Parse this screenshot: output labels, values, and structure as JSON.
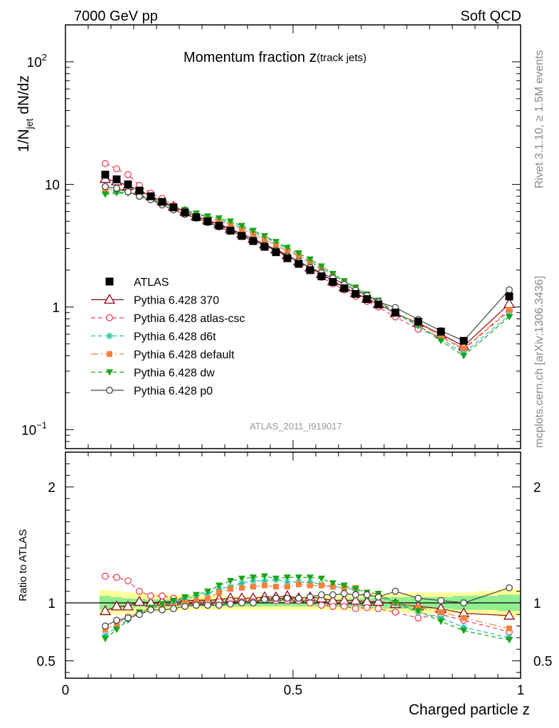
{
  "header": {
    "left": "7000 GeV pp",
    "right": "Soft QCD"
  },
  "side_text": {
    "rivet": "Rivet 3.1.10, ≥ 1.5M events",
    "mcplots": "mcplots.cern.ch [arXiv:1306.3436]"
  },
  "analysis_id": "ATLAS_2011_I919017",
  "colors": {
    "ATLAS": "#000000",
    "Pythia 6.428 370": "#8b0a1e",
    "Pythia 6.428 atlas-csc": "#e8435f",
    "Pythia 6.428 d6t": "#17c4a4",
    "Pythia 6.428 default": "#f5823a",
    "Pythia 6.428 dw": "#1aa51a",
    "Pythia 6.428 p0": "#444444",
    "band_inner": "#90ee90",
    "band_outer": "#ffff99"
  },
  "chart_data": [
    {
      "type": "line",
      "title_main": "Momentum fraction ",
      "title_z": "z",
      "title_sub": "(track jets)",
      "ylabel": "1/N_jet dN/dz",
      "y_scale": "log",
      "ylim": [
        0.07,
        200
      ],
      "xlim": [
        0,
        1
      ],
      "y_ticks": [
        {
          "value": 100,
          "label": "10",
          "exp": "2"
        },
        {
          "value": 10,
          "label": "10",
          "exp": ""
        },
        {
          "value": 1,
          "label": "1",
          "exp": ""
        },
        {
          "value": 0.1,
          "label": "10",
          "exp": "−1"
        }
      ],
      "legend_position": "middle-left",
      "legend": [
        "ATLAS",
        "Pythia 6.428 370",
        "Pythia 6.428 atlas-csc",
        "Pythia 6.428 d6t",
        "Pythia 6.428 default",
        "Pythia 6.428 dw",
        "Pythia 6.428 p0"
      ],
      "x": [
        0.0875,
        0.1125,
        0.1375,
        0.1625,
        0.1875,
        0.2125,
        0.2375,
        0.2625,
        0.2875,
        0.3125,
        0.3375,
        0.3625,
        0.3875,
        0.4125,
        0.4375,
        0.4625,
        0.4875,
        0.5125,
        0.5375,
        0.5625,
        0.5875,
        0.6125,
        0.6375,
        0.6625,
        0.6875,
        0.725,
        0.775,
        0.825,
        0.875,
        0.975
      ],
      "series": [
        {
          "name": "ATLAS",
          "marker": "square",
          "values": [
            12.0,
            11.0,
            10.0,
            8.9,
            8.0,
            7.2,
            6.5,
            5.9,
            5.4,
            5.0,
            4.6,
            4.2,
            3.8,
            3.45,
            3.1,
            2.8,
            2.5,
            2.25,
            2.0,
            1.78,
            1.6,
            1.42,
            1.28,
            1.16,
            1.05,
            0.9,
            0.76,
            0.63,
            0.53,
            1.22
          ]
        },
        {
          "name": "Pythia 6.428 370",
          "marker": "triangle-open",
          "dash": "",
          "values": [
            11.1,
            10.6,
            9.7,
            9.0,
            8.0,
            7.3,
            6.6,
            6.0,
            5.5,
            5.1,
            4.75,
            4.35,
            3.95,
            3.6,
            3.25,
            2.95,
            2.65,
            2.35,
            2.1,
            1.86,
            1.63,
            1.45,
            1.3,
            1.17,
            1.06,
            0.89,
            0.74,
            0.6,
            0.48,
            1.06
          ]
        },
        {
          "name": "Pythia 6.428 atlas-csc",
          "marker": "circle-open",
          "dash": "6,4",
          "values": [
            14.8,
            13.4,
            12.0,
            9.8,
            8.5,
            7.7,
            6.7,
            6.0,
            5.4,
            5.0,
            4.65,
            4.3,
            3.85,
            3.5,
            3.2,
            2.85,
            2.55,
            2.3,
            2.0,
            1.75,
            1.55,
            1.38,
            1.22,
            1.11,
            1.0,
            0.83,
            0.66,
            0.57,
            0.45,
            0.93
          ]
        },
        {
          "name": "Pythia 6.428 d6t",
          "marker": "asterisk",
          "dash": "6,4",
          "values": [
            8.6,
            8.7,
            8.6,
            8.1,
            7.6,
            7.0,
            6.5,
            6.1,
            5.7,
            5.4,
            5.15,
            4.8,
            4.45,
            4.1,
            3.7,
            3.35,
            2.95,
            2.65,
            2.35,
            2.07,
            1.82,
            1.6,
            1.42,
            1.23,
            1.11,
            0.89,
            0.7,
            0.55,
            0.42,
            0.86
          ]
        },
        {
          "name": "Pythia 6.428 default",
          "marker": "square-filled",
          "dash": "10,4,2,4",
          "values": [
            9.2,
            9.0,
            8.8,
            8.2,
            7.6,
            7.0,
            6.3,
            5.9,
            5.5,
            5.2,
            5.0,
            4.7,
            4.3,
            3.95,
            3.55,
            3.2,
            2.85,
            2.6,
            2.3,
            2.05,
            1.83,
            1.6,
            1.45,
            1.25,
            1.12,
            0.9,
            0.73,
            0.58,
            0.46,
            0.95
          ]
        },
        {
          "name": "Pythia 6.428 dw",
          "marker": "triangle-down-filled",
          "dash": "6,4",
          "values": [
            8.3,
            8.5,
            8.5,
            8.2,
            7.7,
            7.1,
            6.6,
            6.2,
            5.8,
            5.5,
            5.3,
            5.0,
            4.6,
            4.2,
            3.8,
            3.4,
            3.05,
            2.75,
            2.45,
            2.15,
            1.87,
            1.63,
            1.44,
            1.27,
            1.13,
            0.9,
            0.71,
            0.53,
            0.4,
            0.83
          ]
        },
        {
          "name": "Pythia 6.428 p0",
          "marker": "circle-open",
          "dash": "",
          "values": [
            9.6,
            9.3,
            8.7,
            8.0,
            7.5,
            6.8,
            6.2,
            5.7,
            5.3,
            4.9,
            4.5,
            4.15,
            3.8,
            3.45,
            3.2,
            2.9,
            2.6,
            2.35,
            2.1,
            1.9,
            1.72,
            1.53,
            1.37,
            1.24,
            1.1,
            0.99,
            0.79,
            0.64,
            0.53,
            1.38
          ]
        }
      ]
    },
    {
      "type": "line",
      "ylabel": "Ratio to ATLAS",
      "xlabel": "Charged particle z",
      "ylim": [
        0.35,
        2.3
      ],
      "xlim": [
        0,
        1
      ],
      "x_ticks": [
        {
          "value": 0,
          "label": "0"
        },
        {
          "value": 0.5,
          "label": "0.5"
        },
        {
          "value": 1,
          "label": "1"
        }
      ],
      "y_ticks": [
        {
          "value": 2,
          "label": "2"
        },
        {
          "value": 1,
          "label": "1"
        },
        {
          "value": 0.5,
          "label": "0.5"
        }
      ],
      "reference_line": 1,
      "band_edges": [
        0.075,
        0.1,
        0.125,
        0.15,
        0.175,
        0.2,
        0.225,
        0.25,
        0.275,
        0.3,
        0.325,
        0.35,
        0.375,
        0.4,
        0.425,
        0.45,
        0.475,
        0.5,
        0.525,
        0.55,
        0.575,
        0.6,
        0.625,
        0.65,
        0.675,
        0.7,
        0.75,
        0.8,
        0.85,
        0.9,
        0.95,
        1.0
      ],
      "band_inner": [
        0.06,
        0.05,
        0.04,
        0.035,
        0.03,
        0.03,
        0.03,
        0.03,
        0.03,
        0.03,
        0.03,
        0.03,
        0.03,
        0.03,
        0.03,
        0.03,
        0.03,
        0.03,
        0.03,
        0.03,
        0.03,
        0.035,
        0.04,
        0.04,
        0.045,
        0.05,
        0.05,
        0.05,
        0.06,
        0.06,
        0.07
      ],
      "band_outer": [
        0.11,
        0.1,
        0.09,
        0.085,
        0.08,
        0.075,
        0.07,
        0.065,
        0.06,
        0.06,
        0.06,
        0.06,
        0.06,
        0.06,
        0.06,
        0.06,
        0.06,
        0.06,
        0.06,
        0.06,
        0.06,
        0.065,
        0.07,
        0.07,
        0.075,
        0.08,
        0.09,
        0.09,
        0.09,
        0.1,
        0.12
      ],
      "series": [
        {
          "name": "Pythia 6.428 370",
          "values": [
            0.93,
            0.97,
            0.97,
            1.01,
            1.0,
            1.01,
            1.01,
            1.02,
            1.02,
            1.02,
            1.03,
            1.04,
            1.04,
            1.04,
            1.05,
            1.05,
            1.06,
            1.04,
            1.05,
            1.04,
            1.02,
            1.02,
            1.02,
            1.01,
            1.01,
            0.99,
            0.97,
            0.95,
            0.91,
            0.89
          ]
        },
        {
          "name": "Pythia 6.428 atlas-csc",
          "values": [
            1.23,
            1.22,
            1.19,
            1.1,
            1.06,
            1.06,
            1.04,
            1.02,
            1.0,
            1.0,
            1.01,
            1.02,
            1.01,
            1.01,
            1.03,
            1.02,
            1.02,
            1.02,
            1.0,
            0.98,
            0.97,
            0.97,
            0.95,
            0.96,
            0.95,
            0.92,
            0.87,
            0.9,
            0.85,
            0.75
          ]
        },
        {
          "name": "Pythia 6.428 d6t",
          "values": [
            0.72,
            0.79,
            0.86,
            0.91,
            0.95,
            0.97,
            1.0,
            1.03,
            1.06,
            1.08,
            1.12,
            1.14,
            1.17,
            1.19,
            1.19,
            1.2,
            1.18,
            1.18,
            1.18,
            1.16,
            1.14,
            1.13,
            1.11,
            1.06,
            1.06,
            0.99,
            0.92,
            0.87,
            0.79,
            0.7
          ]
        },
        {
          "name": "Pythia 6.428 default",
          "values": [
            0.77,
            0.82,
            0.88,
            0.92,
            0.95,
            0.97,
            0.97,
            1.0,
            1.02,
            1.04,
            1.09,
            1.12,
            1.13,
            1.14,
            1.15,
            1.14,
            1.14,
            1.16,
            1.15,
            1.15,
            1.14,
            1.13,
            1.13,
            1.08,
            1.07,
            1.0,
            0.96,
            0.92,
            0.87,
            0.78
          ]
        },
        {
          "name": "Pythia 6.428 dw",
          "values": [
            0.69,
            0.77,
            0.85,
            0.92,
            0.96,
            0.99,
            1.02,
            1.05,
            1.07,
            1.1,
            1.15,
            1.19,
            1.21,
            1.22,
            1.23,
            1.21,
            1.22,
            1.22,
            1.22,
            1.21,
            1.17,
            1.15,
            1.12,
            1.09,
            1.08,
            1.0,
            0.93,
            0.84,
            0.76,
            0.68
          ]
        },
        {
          "name": "Pythia 6.428 p0",
          "values": [
            0.8,
            0.85,
            0.87,
            0.9,
            0.94,
            0.94,
            0.95,
            0.97,
            0.98,
            0.98,
            0.98,
            0.99,
            1.0,
            1.0,
            1.03,
            1.04,
            1.04,
            1.04,
            1.05,
            1.07,
            1.07,
            1.08,
            1.07,
            1.07,
            1.05,
            1.1,
            1.04,
            1.02,
            1.0,
            1.13
          ]
        }
      ]
    }
  ]
}
